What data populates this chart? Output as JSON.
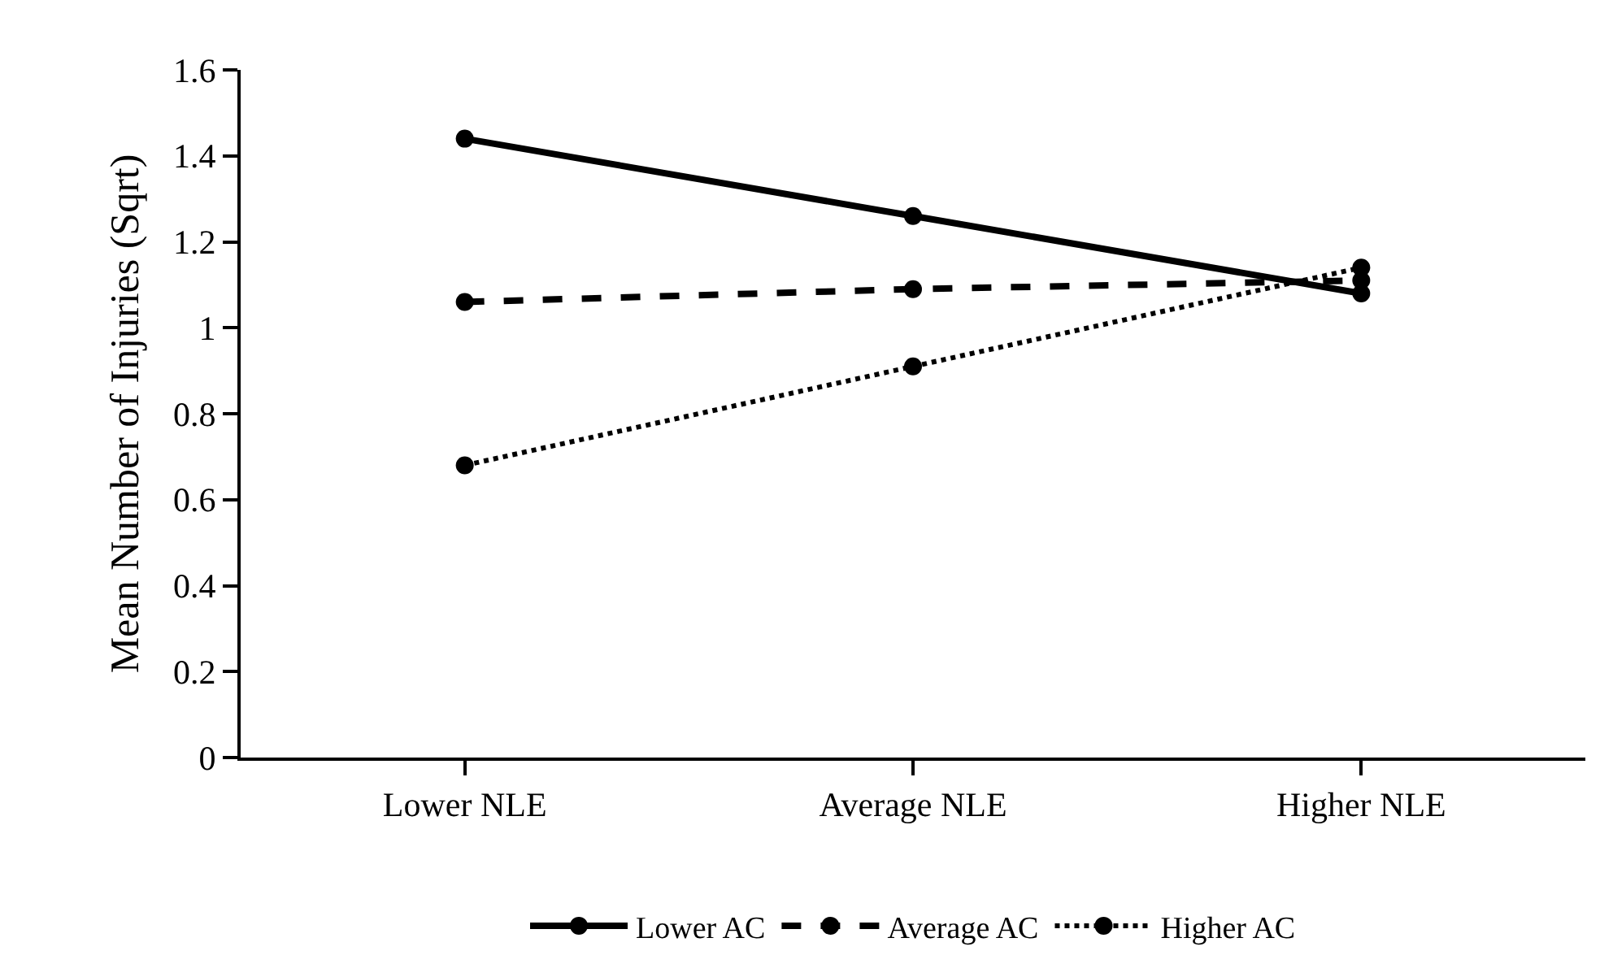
{
  "chart_data": {
    "type": "line",
    "ylabel": "Mean Number of Injuries (Sqrt)",
    "categories": [
      "Lower NLE",
      "Average NLE",
      "Higher NLE"
    ],
    "series": [
      {
        "name": "Lower AC",
        "color": "#000000",
        "line_style": "solid",
        "values": [
          1.44,
          1.26,
          1.08
        ]
      },
      {
        "name": "Average AC",
        "color": "#000000",
        "line_style": "dashed",
        "values": [
          1.06,
          1.09,
          1.11
        ]
      },
      {
        "name": "Higher AC",
        "color": "#000000",
        "line_style": "dotted",
        "values": [
          0.68,
          0.91,
          1.14
        ]
      }
    ],
    "ylim": [
      0,
      1.6
    ],
    "yticks": [
      0,
      0.2,
      0.4,
      0.6,
      0.8,
      1,
      1.2,
      1.4,
      1.6
    ],
    "grid": false,
    "legend": "bottom",
    "marker": "circle"
  }
}
